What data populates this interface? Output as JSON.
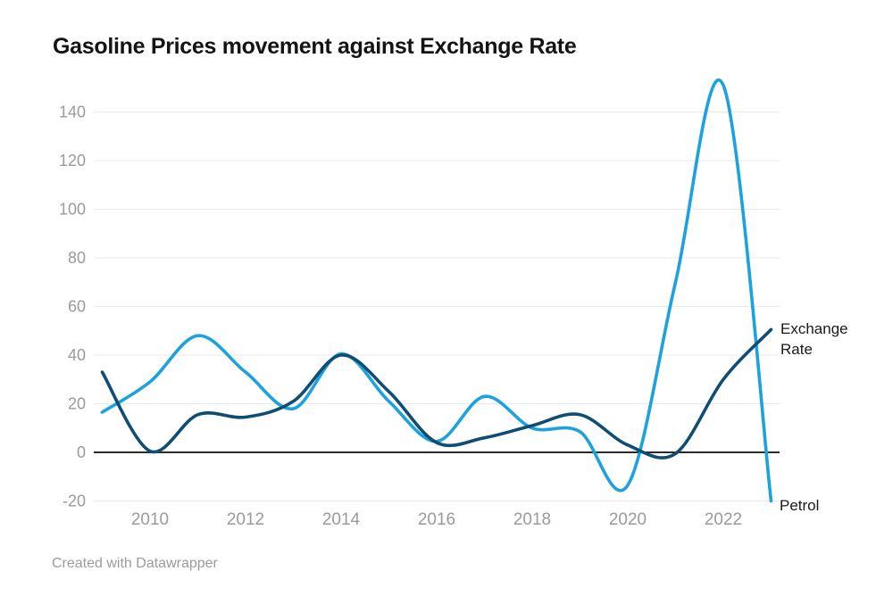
{
  "header": {
    "title": "Gasoline Prices movement against Exchange Rate"
  },
  "footer": {
    "credit": "Created with Datawrapper"
  },
  "colors": {
    "background": "#ffffff",
    "title_text": "#141414",
    "tick_text": "#9a9a9a",
    "series_label_text": "#1a1a1a",
    "grid_line": "#e9e9e9",
    "zero_line": "#2b2b2b",
    "exchange_rate_line": "#0f4d73",
    "petrol_line": "#1ca2dc",
    "credit_text": "#9b9b9b"
  },
  "chart_data": {
    "type": "line",
    "title": "Gasoline Prices movement against Exchange Rate",
    "curve": "smooth",
    "grid": "horizontal",
    "zero_baseline": true,
    "legend_position": "line-end-labels",
    "x": [
      2009,
      2010,
      2011,
      2012,
      2013,
      2014,
      2015,
      2016,
      2017,
      2018,
      2019,
      2020,
      2021,
      2022,
      2023
    ],
    "series": [
      {
        "name": "Exchange Rate",
        "color": "#0f4d73",
        "values": [
          33,
          0.5,
          15.5,
          14.5,
          21,
          40,
          25,
          4,
          6,
          11,
          15.5,
          3,
          -0.5,
          30,
          50.5
        ]
      },
      {
        "name": "Petrol",
        "color": "#1ca2dc",
        "values": [
          16.5,
          29,
          48,
          33,
          18,
          40.5,
          21,
          4.5,
          23,
          10,
          8.5,
          -13.5,
          70,
          151,
          -20
        ]
      }
    ],
    "x_ticks": [
      2010,
      2012,
      2014,
      2016,
      2018,
      2020,
      2022
    ],
    "y_ticks": [
      -20,
      0,
      20,
      40,
      60,
      80,
      100,
      120,
      140
    ],
    "xlim": [
      2009,
      2023
    ],
    "ylim": [
      -20,
      152
    ]
  }
}
